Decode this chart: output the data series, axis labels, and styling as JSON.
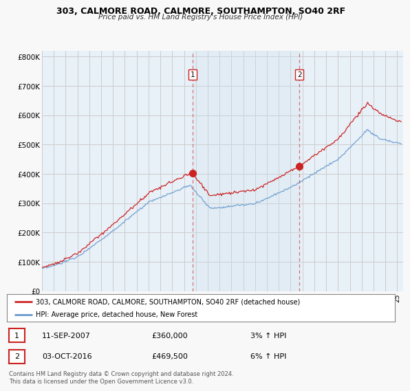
{
  "title": "303, CALMORE ROAD, CALMORE, SOUTHAMPTON, SO40 2RF",
  "subtitle": "Price paid vs. HM Land Registry's House Price Index (HPI)",
  "ylabel_ticks": [
    "£0",
    "£100K",
    "£200K",
    "£300K",
    "£400K",
    "£500K",
    "£600K",
    "£700K",
    "£800K"
  ],
  "ytick_values": [
    0,
    100000,
    200000,
    300000,
    400000,
    500000,
    600000,
    700000,
    800000
  ],
  "ylim": [
    0,
    820000
  ],
  "xlim_start": 1995.0,
  "xlim_end": 2025.5,
  "red_line_color": "#cc2222",
  "blue_line_color": "#6699cc",
  "blue_fill_color": "#d0e4f0",
  "sale1_x": 2007.71,
  "sale1_y": 360000,
  "sale2_x": 2016.75,
  "sale2_y": 469500,
  "legend_entries": [
    "303, CALMORE ROAD, CALMORE, SOUTHAMPTON, SO40 2RF (detached house)",
    "HPI: Average price, detached house, New Forest"
  ],
  "table_rows": [
    {
      "num": "1",
      "date": "11-SEP-2007",
      "price": "£360,000",
      "hpi": "3% ↑ HPI"
    },
    {
      "num": "2",
      "date": "03-OCT-2016",
      "price": "£469,500",
      "hpi": "6% ↑ HPI"
    }
  ],
  "footnote": "Contains HM Land Registry data © Crown copyright and database right 2024.\nThis data is licensed under the Open Government Licence v3.0.",
  "background_color": "#f5f5f5",
  "plot_bg_color": "#e8f0f8",
  "grid_color": "#cccccc",
  "vline_color": "#cc2222",
  "vline_alpha": 0.7
}
